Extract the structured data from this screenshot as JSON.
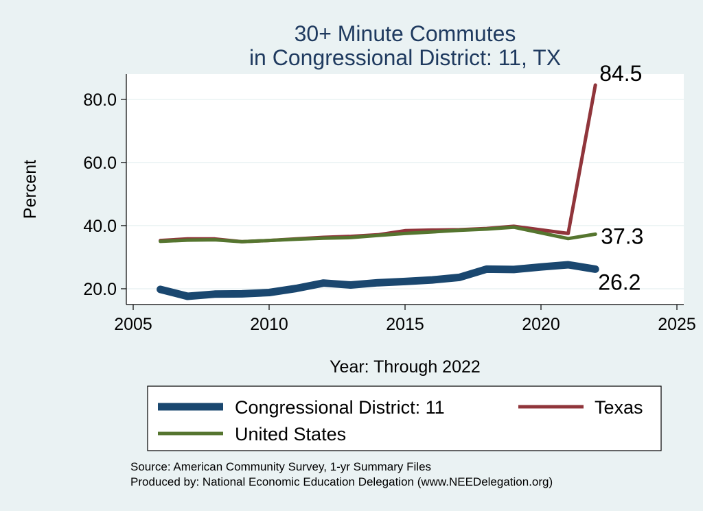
{
  "colors": {
    "background": "#eaf2f3",
    "plot_bg": "#ffffff",
    "grid": "#eaf2f3",
    "title": "#1f3a5f",
    "district": "#1a476f",
    "texas": "#90353b",
    "us": "#55752f"
  },
  "chart_data": {
    "type": "line",
    "title": "30+ Minute Commutes",
    "subtitle": "in Congressional District:  11, TX",
    "xlabel": "Year: Through 2022",
    "ylabel": "Percent",
    "xlim": [
      2005,
      2025
    ],
    "ylim": [
      15,
      88
    ],
    "xticks": [
      2005,
      2010,
      2015,
      2020,
      2025
    ],
    "xtick_labels": [
      "2005",
      "2010",
      "2015",
      "2020",
      "2025"
    ],
    "yticks": [
      20,
      40,
      60,
      80
    ],
    "ytick_labels": [
      "20.0",
      "40.0",
      "60.0",
      "80.0"
    ],
    "grid": true,
    "legend_position": "bottom",
    "x": [
      2006,
      2007,
      2008,
      2009,
      2010,
      2011,
      2012,
      2013,
      2014,
      2015,
      2016,
      2017,
      2018,
      2019,
      2020,
      2021,
      2022
    ],
    "series": [
      {
        "name": "Congressional District:  11",
        "key": "district",
        "values": [
          19.8,
          17.6,
          18.3,
          18.4,
          18.8,
          20.1,
          21.8,
          21.2,
          21.9,
          22.3,
          22.8,
          23.6,
          26.2,
          26.1,
          26.9,
          27.6,
          26.2
        ],
        "end_label": "26.2"
      },
      {
        "name": "Texas",
        "key": "texas",
        "values": [
          35.3,
          35.8,
          35.8,
          34.9,
          35.3,
          35.8,
          36.3,
          36.6,
          37.1,
          38.4,
          38.6,
          38.7,
          39.1,
          39.8,
          null,
          37.5,
          84.5
        ],
        "end_label": "84.5"
      },
      {
        "name": "United States",
        "key": "us",
        "values": [
          35.0,
          35.4,
          35.5,
          34.9,
          35.3,
          35.7,
          36.0,
          36.2,
          36.9,
          37.5,
          38.0,
          38.5,
          38.9,
          39.5,
          null,
          35.9,
          37.3
        ],
        "end_label": "37.3"
      }
    ]
  },
  "source_lines": [
    "Source: American Community Survey, 1-yr Summary Files",
    "Produced by: National Economic Education Delegation (www.NEEDelegation.org)"
  ]
}
